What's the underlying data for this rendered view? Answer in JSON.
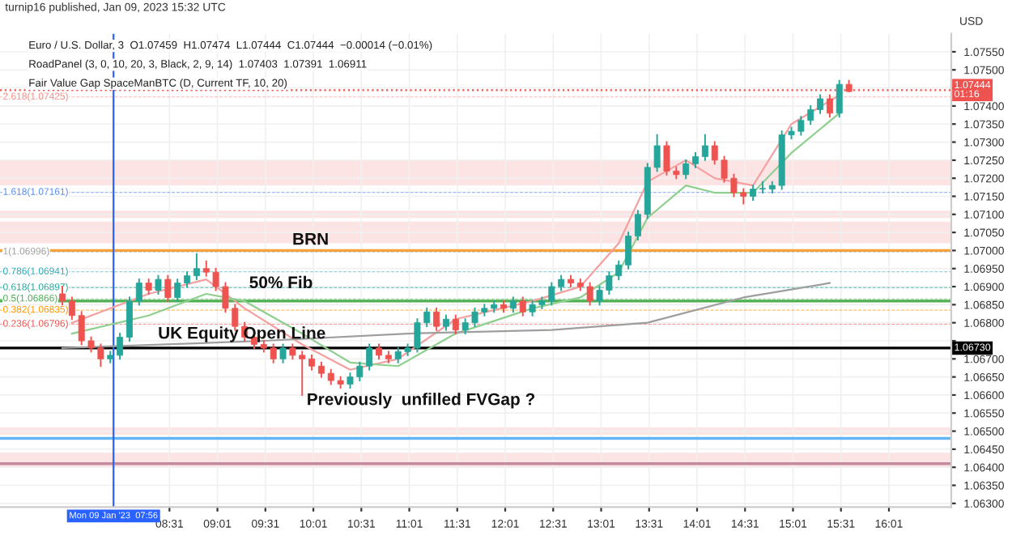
{
  "chart_data": {
    "type": "candlestick",
    "title": "turnip16 published, Jan 09, 2023 15:32 UTC",
    "ylabel": "USD",
    "x": [
      "2023-01-09T07:24",
      "2023-01-09T07:30",
      "2023-01-09T07:36",
      "2023-01-09T07:42",
      "2023-01-09T07:48",
      "2023-01-09T07:54",
      "2023-01-09T08:00",
      "2023-01-09T08:06",
      "2023-01-09T08:12",
      "2023-01-09T08:18",
      "2023-01-09T08:24",
      "2023-01-09T08:30",
      "2023-01-09T08:36",
      "2023-01-09T08:42",
      "2023-01-09T08:48",
      "2023-01-09T08:54",
      "2023-01-09T09:00",
      "2023-01-09T09:06",
      "2023-01-09T09:12",
      "2023-01-09T09:18",
      "2023-01-09T09:24",
      "2023-01-09T09:30",
      "2023-01-09T09:36",
      "2023-01-09T09:42",
      "2023-01-09T09:48",
      "2023-01-09T09:54",
      "2023-01-09T10:00",
      "2023-01-09T10:06",
      "2023-01-09T10:12",
      "2023-01-09T10:18",
      "2023-01-09T10:24",
      "2023-01-09T10:30",
      "2023-01-09T10:36",
      "2023-01-09T10:42",
      "2023-01-09T10:48",
      "2023-01-09T10:54",
      "2023-01-09T11:00",
      "2023-01-09T11:06",
      "2023-01-09T11:12",
      "2023-01-09T11:18",
      "2023-01-09T11:24",
      "2023-01-09T11:30",
      "2023-01-09T11:36",
      "2023-01-09T11:42",
      "2023-01-09T11:48",
      "2023-01-09T11:54",
      "2023-01-09T12:00",
      "2023-01-09T12:06",
      "2023-01-09T12:12",
      "2023-01-09T12:18",
      "2023-01-09T12:24",
      "2023-01-09T12:30",
      "2023-01-09T12:36",
      "2023-01-09T12:42",
      "2023-01-09T12:48",
      "2023-01-09T12:54",
      "2023-01-09T13:00",
      "2023-01-09T13:06",
      "2023-01-09T13:12",
      "2023-01-09T13:18",
      "2023-01-09T13:24",
      "2023-01-09T13:30",
      "2023-01-09T13:36",
      "2023-01-09T13:42",
      "2023-01-09T13:48",
      "2023-01-09T13:54",
      "2023-01-09T14:00",
      "2023-01-09T14:06",
      "2023-01-09T14:12",
      "2023-01-09T14:18",
      "2023-01-09T14:24",
      "2023-01-09T14:30",
      "2023-01-09T14:36",
      "2023-01-09T14:42",
      "2023-01-09T14:48",
      "2023-01-09T14:54",
      "2023-01-09T15:00",
      "2023-01-09T15:06",
      "2023-01-09T15:12",
      "2023-01-09T15:18",
      "2023-01-09T15:24",
      "2023-01-09T15:30",
      "2023-01-09T15:36"
    ],
    "ohlc": [
      [
        1.0688,
        1.069,
        1.0685,
        1.0686
      ],
      [
        1.0686,
        1.0687,
        1.0681,
        1.0682
      ],
      [
        1.0682,
        1.0683,
        1.0674,
        1.0675
      ],
      [
        1.0675,
        1.0676,
        1.0672,
        1.0673
      ],
      [
        1.0673,
        1.0674,
        1.0668,
        1.067
      ],
      [
        1.067,
        1.0672,
        1.0669,
        1.0671
      ],
      [
        1.0671,
        1.0677,
        1.067,
        1.0676
      ],
      [
        1.0676,
        1.0687,
        1.0675,
        1.0686
      ],
      [
        1.0686,
        1.0692,
        1.0685,
        1.0691
      ],
      [
        1.0691,
        1.0692,
        1.0688,
        1.0689
      ],
      [
        1.0689,
        1.0693,
        1.0688,
        1.0692
      ],
      [
        1.0692,
        1.0693,
        1.0686,
        1.0687
      ],
      [
        1.0687,
        1.0692,
        1.0686,
        1.0691
      ],
      [
        1.0691,
        1.0694,
        1.069,
        1.0693
      ],
      [
        1.0693,
        1.0699,
        1.0692,
        1.0695
      ],
      [
        1.0695,
        1.0697,
        1.0693,
        1.0694
      ],
      [
        1.0694,
        1.0695,
        1.0689,
        1.069
      ],
      [
        1.069,
        1.0691,
        1.0683,
        1.0684
      ],
      [
        1.0684,
        1.0685,
        1.0678,
        1.0679
      ],
      [
        1.0679,
        1.068,
        1.0675,
        1.0676
      ],
      [
        1.0676,
        1.0677,
        1.0673,
        1.0674
      ],
      [
        1.0674,
        1.0675,
        1.0672,
        1.0673
      ],
      [
        1.0673,
        1.0674,
        1.0669,
        1.067
      ],
      [
        1.067,
        1.0674,
        1.0669,
        1.0673
      ],
      [
        1.0673,
        1.0674,
        1.067,
        1.0671
      ],
      [
        1.0671,
        1.0672,
        1.066,
        1.067
      ],
      [
        1.067,
        1.0671,
        1.0667,
        1.0668
      ],
      [
        1.0668,
        1.0669,
        1.0665,
        1.0666
      ],
      [
        1.0666,
        1.0667,
        1.0663,
        1.0664
      ],
      [
        1.0664,
        1.0665,
        1.0662,
        1.0663
      ],
      [
        1.0663,
        1.0666,
        1.0662,
        1.0665
      ],
      [
        1.0665,
        1.0669,
        1.0664,
        1.0668
      ],
      [
        1.0668,
        1.0674,
        1.0667,
        1.0673
      ],
      [
        1.0673,
        1.0674,
        1.067,
        1.0671
      ],
      [
        1.0671,
        1.0672,
        1.0669,
        1.067
      ],
      [
        1.067,
        1.0673,
        1.0669,
        1.0672
      ],
      [
        1.0672,
        1.0674,
        1.0671,
        1.0673
      ],
      [
        1.0673,
        1.0681,
        1.0672,
        1.068
      ],
      [
        1.068,
        1.0684,
        1.0679,
        1.0683
      ],
      [
        1.0683,
        1.0684,
        1.0678,
        1.0679
      ],
      [
        1.0679,
        1.0682,
        1.0678,
        1.0681
      ],
      [
        1.0681,
        1.0682,
        1.0677,
        1.0678
      ],
      [
        1.0678,
        1.0681,
        1.0677,
        1.068
      ],
      [
        1.068,
        1.0684,
        1.0679,
        1.0683
      ],
      [
        1.0683,
        1.0685,
        1.0682,
        1.0684
      ],
      [
        1.0684,
        1.0686,
        1.0683,
        1.0685
      ],
      [
        1.0685,
        1.0686,
        1.0683,
        1.0684
      ],
      [
        1.0684,
        1.0687,
        1.0683,
        1.0686
      ],
      [
        1.0686,
        1.0687,
        1.0682,
        1.0683
      ],
      [
        1.0683,
        1.0686,
        1.0682,
        1.0685
      ],
      [
        1.0685,
        1.0687,
        1.0684,
        1.0686
      ],
      [
        1.0686,
        1.0691,
        1.0685,
        1.069
      ],
      [
        1.069,
        1.0693,
        1.0689,
        1.0692
      ],
      [
        1.0692,
        1.0693,
        1.069,
        1.0691
      ],
      [
        1.0691,
        1.0692,
        1.0689,
        1.069
      ],
      [
        1.069,
        1.0691,
        1.0685,
        1.0686
      ],
      [
        1.0686,
        1.069,
        1.0685,
        1.0689
      ],
      [
        1.0689,
        1.0694,
        1.0688,
        1.0693
      ],
      [
        1.0693,
        1.0697,
        1.0692,
        1.0696
      ],
      [
        1.0696,
        1.0705,
        1.0695,
        1.0704
      ],
      [
        1.0704,
        1.0711,
        1.0703,
        1.071
      ],
      [
        1.071,
        1.0724,
        1.0709,
        1.0723
      ],
      [
        1.0723,
        1.0732,
        1.0722,
        1.0729
      ],
      [
        1.0729,
        1.073,
        1.0721,
        1.0722
      ],
      [
        1.0722,
        1.0723,
        1.072,
        1.0721
      ],
      [
        1.0721,
        1.0725,
        1.072,
        1.0724
      ],
      [
        1.0724,
        1.0727,
        1.0723,
        1.0726
      ],
      [
        1.0726,
        1.0732,
        1.0725,
        1.0729
      ],
      [
        1.0729,
        1.073,
        1.0724,
        1.0725
      ],
      [
        1.0725,
        1.0726,
        1.0719,
        1.072
      ],
      [
        1.072,
        1.0721,
        1.0715,
        1.0716
      ],
      [
        1.0716,
        1.0717,
        1.0713,
        1.0715
      ],
      [
        1.0715,
        1.0718,
        1.0714,
        1.0717
      ],
      [
        1.0717,
        1.0719,
        1.0716,
        1.0717
      ],
      [
        1.0717,
        1.0719,
        1.0716,
        1.0718
      ],
      [
        1.0718,
        1.0733,
        1.0717,
        1.0732
      ],
      [
        1.0732,
        1.0734,
        1.0731,
        1.0733
      ],
      [
        1.0733,
        1.0737,
        1.0732,
        1.0736
      ],
      [
        1.0736,
        1.074,
        1.0735,
        1.0739
      ],
      [
        1.0739,
        1.0743,
        1.0738,
        1.0742
      ],
      [
        1.0742,
        1.0743,
        1.0737,
        1.0738
      ],
      [
        1.0738,
        1.0747,
        1.0737,
        1.0746
      ],
      [
        1.0746,
        1.0747,
        1.0744,
        1.0744
      ]
    ],
    "series": [
      {
        "type": "line",
        "color": "#f4a0a0",
        "x": [
          "2023-01-09T07:30",
          "2023-01-09T08:18",
          "2023-01-09T08:54",
          "2023-01-09T09:18",
          "2023-01-09T09:54",
          "2023-01-09T10:24",
          "2023-01-09T10:54",
          "2023-01-09T11:30",
          "2023-01-09T12:18",
          "2023-01-09T12:48",
          "2023-01-09T13:12",
          "2023-01-09T13:30",
          "2023-01-09T13:54",
          "2023-01-09T14:12",
          "2023-01-09T14:36",
          "2023-01-09T15:00",
          "2023-01-09T15:30"
        ],
        "values": [
          1.068,
          1.0688,
          1.0692,
          1.0684,
          1.0674,
          1.0667,
          1.067,
          1.0681,
          1.0686,
          1.069,
          1.0702,
          1.0719,
          1.0725,
          1.072,
          1.0718,
          1.0735,
          1.0743
        ]
      },
      {
        "type": "line",
        "color": "#8fcf8f",
        "x": [
          "2023-01-09T07:30",
          "2023-01-09T08:18",
          "2023-01-09T08:54",
          "2023-01-09T09:18",
          "2023-01-09T09:54",
          "2023-01-09T10:24",
          "2023-01-09T10:54",
          "2023-01-09T11:30",
          "2023-01-09T12:18",
          "2023-01-09T12:48",
          "2023-01-09T13:12",
          "2023-01-09T13:30",
          "2023-01-09T13:54",
          "2023-01-09T14:12",
          "2023-01-09T14:36",
          "2023-01-09T15:00",
          "2023-01-09T15:30"
        ],
        "values": [
          1.0677,
          1.0682,
          1.0688,
          1.0686,
          1.0677,
          1.0669,
          1.0668,
          1.0677,
          1.0684,
          1.0687,
          1.0694,
          1.0709,
          1.0718,
          1.0716,
          1.0716,
          1.0727,
          1.0738
        ]
      },
      {
        "type": "line",
        "color": "#9e9e9e",
        "x": [
          "2023-01-09T07:24",
          "2023-01-09T09:30",
          "2023-01-09T11:00",
          "2023-01-09T12:30",
          "2023-01-09T13:30",
          "2023-01-09T14:30",
          "2023-01-09T15:24"
        ],
        "values": [
          1.0673,
          1.0675,
          1.0677,
          1.0678,
          1.068,
          1.0687,
          1.0691
        ]
      }
    ],
    "xlim": [
      "2023-01-09T06:45",
      "2023-01-09T16:40"
    ],
    "xticks": [
      {
        "value": "2023-01-09T08:31",
        "label": "08:31"
      },
      {
        "value": "2023-01-09T09:01",
        "label": "09:01"
      },
      {
        "value": "2023-01-09T09:31",
        "label": "09:31"
      },
      {
        "value": "2023-01-09T10:01",
        "label": "10:01"
      },
      {
        "value": "2023-01-09T10:31",
        "label": "10:31"
      },
      {
        "value": "2023-01-09T11:01",
        "label": "11:01"
      },
      {
        "value": "2023-01-09T11:31",
        "label": "11:31"
      },
      {
        "value": "2023-01-09T12:01",
        "label": "12:01"
      },
      {
        "value": "2023-01-09T12:31",
        "label": "12:31"
      },
      {
        "value": "2023-01-09T13:01",
        "label": "13:01"
      },
      {
        "value": "2023-01-09T13:31",
        "label": "13:31"
      },
      {
        "value": "2023-01-09T14:01",
        "label": "14:01"
      },
      {
        "value": "2023-01-09T14:31",
        "label": "14:31"
      },
      {
        "value": "2023-01-09T15:01",
        "label": "15:01"
      },
      {
        "value": "2023-01-09T15:31",
        "label": "15:31"
      },
      {
        "value": "2023-01-09T16:01",
        "label": "16:01"
      }
    ],
    "ylim": [
      1.0629,
      1.076
    ],
    "yticks": [
      {
        "value": 1.063,
        "label": "1.06300"
      },
      {
        "value": 1.0635,
        "label": "1.06350"
      },
      {
        "value": 1.064,
        "label": "1.06400"
      },
      {
        "value": 1.0645,
        "label": "1.06450"
      },
      {
        "value": 1.065,
        "label": "1.06500"
      },
      {
        "value": 1.0655,
        "label": "1.06550"
      },
      {
        "value": 1.066,
        "label": "1.06600"
      },
      {
        "value": 1.0665,
        "label": "1.06650"
      },
      {
        "value": 1.067,
        "label": "1.06700"
      },
      {
        "value": 1.0675,
        "label": null
      },
      {
        "value": 1.068,
        "label": "1.06800"
      },
      {
        "value": 1.0685,
        "label": "1.06850"
      },
      {
        "value": 1.069,
        "label": "1.06900"
      },
      {
        "value": 1.0695,
        "label": "1.06950"
      },
      {
        "value": 1.07,
        "label": "1.07000"
      },
      {
        "value": 1.0705,
        "label": "1.07050"
      },
      {
        "value": 1.071,
        "label": "1.07100"
      },
      {
        "value": 1.0715,
        "label": "1.07150"
      },
      {
        "value": 1.072,
        "label": "1.07200"
      },
      {
        "value": 1.0725,
        "label": "1.07250"
      },
      {
        "value": 1.073,
        "label": "1.07300"
      },
      {
        "value": 1.0735,
        "label": "1.07350"
      },
      {
        "value": 1.074,
        "label": "1.07400"
      },
      {
        "value": 1.0745,
        "label": null
      },
      {
        "value": 1.075,
        "label": "1.07500"
      },
      {
        "value": 1.0755,
        "label": "1.07550"
      }
    ],
    "grid": true,
    "ref_lines": [
      {
        "axis": "y",
        "value": 1.07,
        "color": "#f7a23b"
      },
      {
        "axis": "y",
        "value": 1.0686,
        "color": "#4caf50"
      },
      {
        "axis": "y",
        "value": 1.0673,
        "color": "#000000",
        "label": "1.06730"
      },
      {
        "axis": "y",
        "value": 1.0648,
        "color": "#64b5f6"
      },
      {
        "axis": "y",
        "value": 1.0641,
        "color": "#c48b9f"
      },
      {
        "axis": "y",
        "value": 1.07444,
        "color": "#ef5350",
        "label": "1.07444\n01:16",
        "line_style": "dotted"
      },
      {
        "axis": "x",
        "value": "2023-01-09T07:56",
        "color": "#2962ff",
        "label": "Mon 09 Jan '23  07:56"
      },
      {
        "axis": "y",
        "value": 1.07425,
        "color": "#f28b82",
        "label": "2.618(1.07425)",
        "line_style": "dashed"
      },
      {
        "axis": "y",
        "value": 1.07161,
        "color": "#5b8def",
        "label": "1.618(1.07161)",
        "line_style": "dashed"
      },
      {
        "axis": "y",
        "value": 1.06996,
        "color": "#9e9e9e",
        "label": "1(1.06996)",
        "line_style": "dashed"
      },
      {
        "axis": "y",
        "value": 1.06941,
        "color": "#26a6b8",
        "label": "0.786(1.06941)",
        "line_style": "dashed"
      },
      {
        "axis": "y",
        "value": 1.06897,
        "color": "#26a69a",
        "label": "0.618(1.06897)",
        "line_style": "dashed"
      },
      {
        "axis": "y",
        "value": 1.06866,
        "color": "#4caf50",
        "label": "0.5(1.06866)",
        "line_style": "dashed"
      },
      {
        "axis": "y",
        "value": 1.06835,
        "color": "#ff9800",
        "label": "0.382(1.06835)",
        "line_style": "dashed"
      },
      {
        "axis": "y",
        "value": 1.06796,
        "color": "#ef5350",
        "label": "0.236(1.06796)",
        "line_style": "dashed"
      }
    ],
    "bands": [
      {
        "axis": "y",
        "from": 1.0718,
        "to": 1.0725,
        "color": "#fde4e4"
      },
      {
        "axis": "y",
        "from": 1.0709,
        "to": 1.0711,
        "color": "#fde4e4"
      },
      {
        "axis": "y",
        "from": 1.0702,
        "to": 1.0708,
        "color": "#fde4e4"
      },
      {
        "axis": "y",
        "from": 1.0649,
        "to": 1.0651,
        "color": "#fde4e4"
      },
      {
        "axis": "y",
        "from": 1.064,
        "to": 1.0644,
        "color": "#fde4e4"
      }
    ],
    "annotations": [
      "Euro / U.S. Dollar, 3  O1.07459  H1.07474  L1.07444  C1.07444  −0.00014 (−0.01%)",
      "RoadPanel (3, 0, 10, 20, 3, Black, 2, 9, 14)  1.07403  1.07391  1.06911",
      "Fair Value Gap SpaceManBTC (D, Current TF, 10, 20)",
      {
        "text": "BRN",
        "x": "2023-01-09T09:45",
        "y": 1.07
      },
      {
        "text": "50% Fib",
        "x": "2023-01-09T09:18",
        "y": 1.0688
      },
      {
        "text": "UK Equity Open Line",
        "x": "2023-01-09T08:21",
        "y": 1.0674
      },
      {
        "text": "Previously  unfilled FVGap ?",
        "x": "2023-01-09T09:54",
        "y": 1.066
      }
    ]
  }
}
